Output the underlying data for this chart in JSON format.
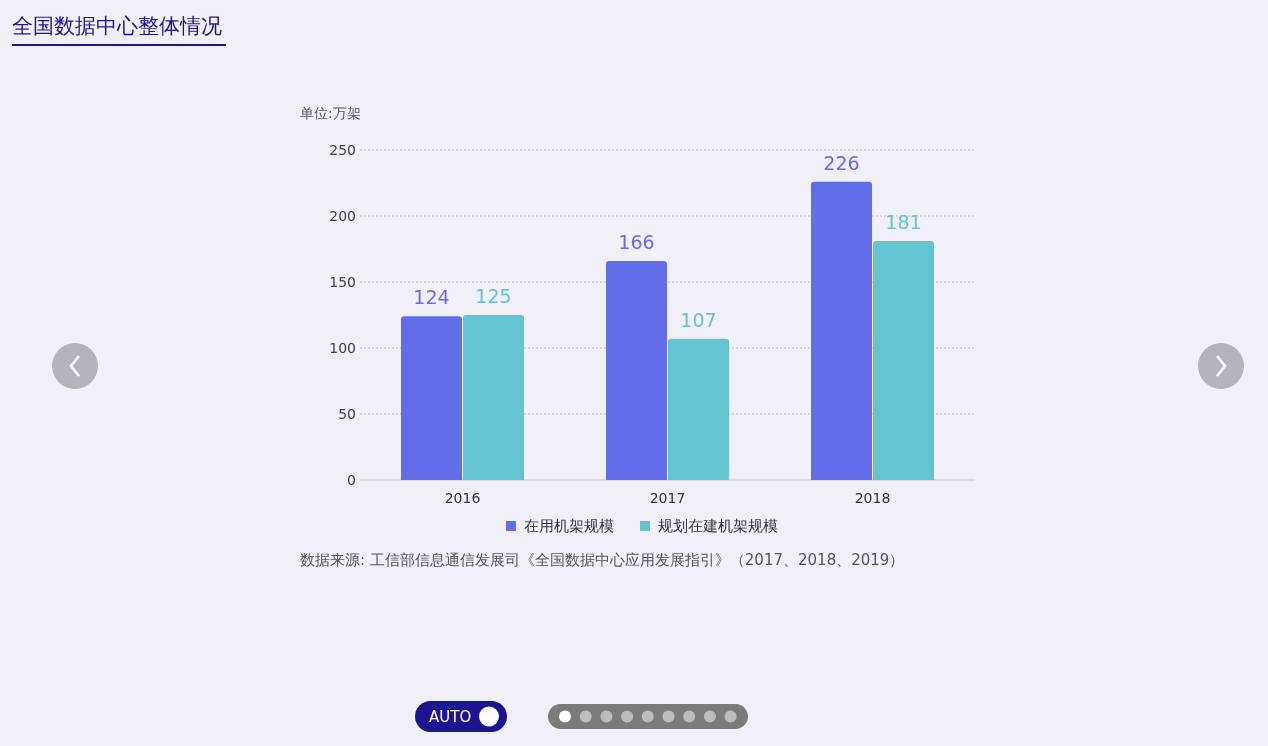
{
  "chart_data": {
    "type": "bar",
    "title": "全国数据中心整体情况",
    "ylabel": "单位:万架",
    "categories": [
      "2016",
      "2017",
      "2018"
    ],
    "series": [
      {
        "name": "在用机架规模",
        "color": "#636de9",
        "values": [
          124,
          166,
          226
        ]
      },
      {
        "name": "规划在建机架规模",
        "color": "#63c4d0",
        "values": [
          125,
          107,
          181
        ]
      }
    ],
    "ylim": [
      0,
      250
    ],
    "yticks": [
      0,
      50,
      100,
      150,
      200,
      250
    ],
    "grid": "y",
    "legend": "bottom",
    "data_labels": true,
    "annotations": [
      "数据来源: 工信部信息通信发展司《全国数据中心应用发展指引》（2017、2018、2019）",
      "AUTO"
    ]
  }
}
